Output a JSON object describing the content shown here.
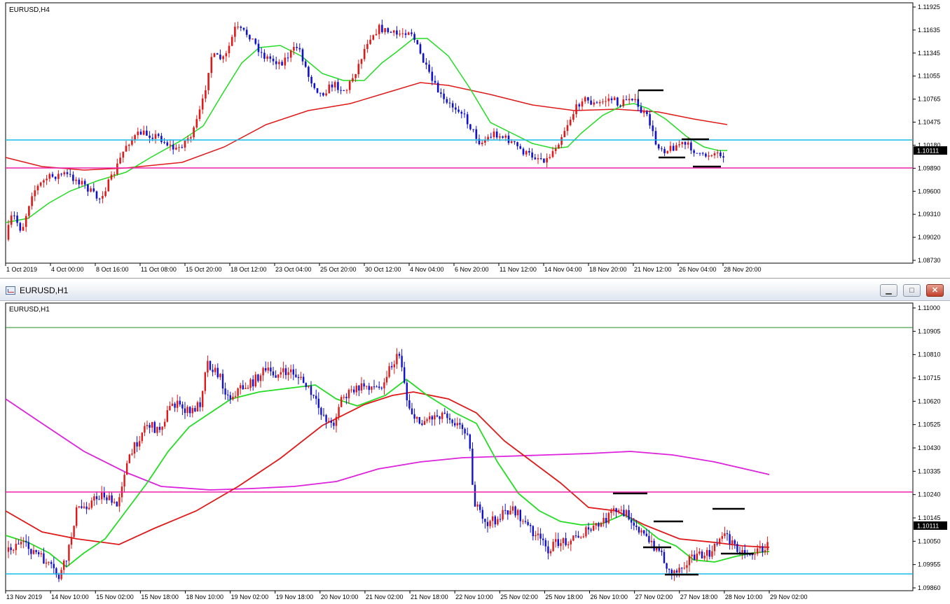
{
  "top_chart": {
    "label": "EURUSD,H4",
    "price_ticks": [
      "1.11925",
      "1.11635",
      "1.11345",
      "1.11055",
      "1.10765",
      "1.10475",
      "1.10180",
      "1.09890",
      "1.09600",
      "1.09310",
      "1.09020",
      "1.08730"
    ],
    "current_price": "1.10111",
    "time_ticks": [
      "1 Oct 2019",
      "4 Oct 00:00",
      "8 Oct 16:00",
      "11 Oct 08:00",
      "15 Oct 20:00",
      "18 Oct 12:00",
      "23 Oct 04:00",
      "25 Oct 20:00",
      "30 Oct 12:00",
      "4 Nov 04:00",
      "6 Nov 20:00",
      "11 Nov 12:00",
      "14 Nov 04:00",
      "18 Nov 20:00",
      "21 Nov 12:00",
      "26 Nov 04:00",
      "28 Nov 20:00"
    ],
    "colors": {
      "bull": "#e01818",
      "bear": "#1010d0",
      "ma_fast": "#22dd22",
      "ma_slow": "#e01818",
      "level_resistance": "#18b8e8",
      "level_support": "#ee22aa"
    }
  },
  "bottom_window": {
    "title": "EURUSD,H1",
    "buttons": {
      "minimize": "▁",
      "maximize": "□",
      "close": "✕"
    }
  },
  "bottom_chart": {
    "label": "EURUSD,H1",
    "price_ticks": [
      "1.11000",
      "1.10905",
      "1.10810",
      "1.10715",
      "1.10620",
      "1.10525",
      "1.10430",
      "1.10335",
      "1.10240",
      "1.10145",
      "1.10050",
      "1.09955",
      "1.09860"
    ],
    "current_price": "1.10111",
    "time_ticks": [
      "13 Nov 2019",
      "14 Nov 10:00",
      "15 Nov 02:00",
      "15 Nov 18:00",
      "18 Nov 10:00",
      "19 Nov 02:00",
      "19 Nov 18:00",
      "20 Nov 10:00",
      "21 Nov 02:00",
      "21 Nov 18:00",
      "22 Nov 10:00",
      "25 Nov 02:00",
      "25 Nov 18:00",
      "26 Nov 10:00",
      "27 Nov 02:00",
      "27 Nov 18:00",
      "28 Nov 10:00",
      "29 Nov 02:00"
    ],
    "colors": {
      "bull": "#e01818",
      "bear": "#1010d0",
      "ma_fast": "#22dd22",
      "ma_mid": "#e01818",
      "ma_long": "#dd22dd",
      "level_top": "#228822",
      "level_resistance": "#ee22aa",
      "level_support": "#18b8e8"
    }
  }
}
